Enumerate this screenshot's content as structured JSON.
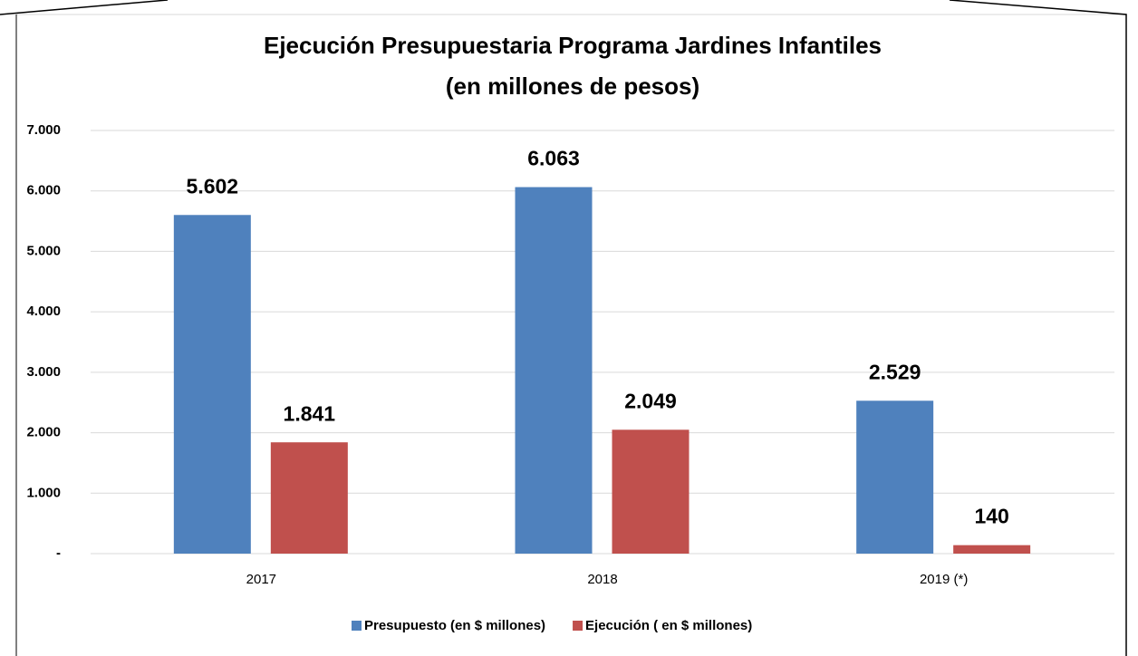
{
  "chart_data": {
    "type": "bar",
    "title": "Ejecución Presupuestaria Programa  Jardines Infantiles",
    "subtitle": "(en millones de pesos)",
    "categories": [
      "2017",
      "2018",
      "2019 (*)"
    ],
    "series": [
      {
        "name": "Presupuesto  (en $ millones)",
        "color": "#4f81bd",
        "values": [
          5602,
          6063,
          2529
        ],
        "value_labels": [
          "5.602",
          "6.063",
          "2.529"
        ]
      },
      {
        "name": "Ejecución ( en $ millones)",
        "color": "#c0504d",
        "values": [
          1841,
          2049,
          140
        ],
        "value_labels": [
          "1.841",
          "2.049",
          "140"
        ]
      }
    ],
    "ylim": [
      0,
      7000
    ],
    "yticks": [
      {
        "value": 0,
        "label": "-"
      },
      {
        "value": 1000,
        "label": "1.000"
      },
      {
        "value": 2000,
        "label": "2.000"
      },
      {
        "value": 3000,
        "label": "3.000"
      },
      {
        "value": 4000,
        "label": "4.000"
      },
      {
        "value": 5000,
        "label": "5.000"
      },
      {
        "value": 6000,
        "label": "6.000"
      },
      {
        "value": 7000,
        "label": "7.000"
      }
    ],
    "grid": true,
    "legend": "bottom"
  }
}
